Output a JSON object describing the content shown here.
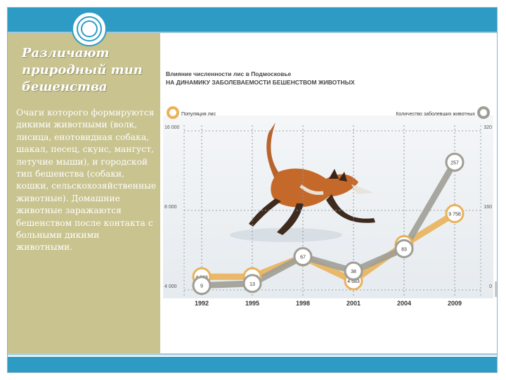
{
  "slide": {
    "title": "Различают природный тип бешенства",
    "body": "Очаги которого формируются дикими животными (волк, лисица, енотовидная собака, шакал, песец, скунс, мангуст, летучие мыши), и городской тип бешенства (собаки, кошки, сельскохозяйственные животные). Домашние животные заражаются бешенством после контакта с больными дикими животными."
  },
  "icons": {
    "ornament": "circle-ornament-icon",
    "photo": "fox-photo"
  },
  "colors": {
    "accent": "#2d9bc4",
    "panel": "#c8c38f",
    "fox_series": "#e9b25a",
    "cases_series": "#9e9e96"
  },
  "chart_data": {
    "type": "line",
    "title": "Влияние численности лис в Подмосковье на динамику заболеваемости бешенством животных",
    "categories": [
      "1992",
      "1995",
      "1998",
      "2001",
      "2004",
      "2009"
    ],
    "left_axis": {
      "label": "Популяция лис",
      "ticks": [
        "16 000",
        "8 000",
        "4 000"
      ],
      "range": [
        4000,
        16000
      ]
    },
    "right_axis": {
      "label": "Количество заболевших животных",
      "ticks": [
        "320",
        "160",
        "0"
      ],
      "range": [
        0,
        320
      ]
    },
    "series": [
      {
        "name": "Популяция лис",
        "axis": "left",
        "values": [
          4993,
          4996,
          6492,
          4683,
          7423,
          9758
        ],
        "labels": [
          "4 993",
          "4 996",
          "6 492",
          "4 683",
          "7 423",
          "9 758"
        ]
      },
      {
        "name": "Количество заболевших животных",
        "axis": "right",
        "values": [
          9,
          13,
          67,
          38,
          83,
          257
        ],
        "labels": [
          "9",
          "13",
          "67",
          "38",
          "83",
          "257"
        ]
      }
    ]
  }
}
